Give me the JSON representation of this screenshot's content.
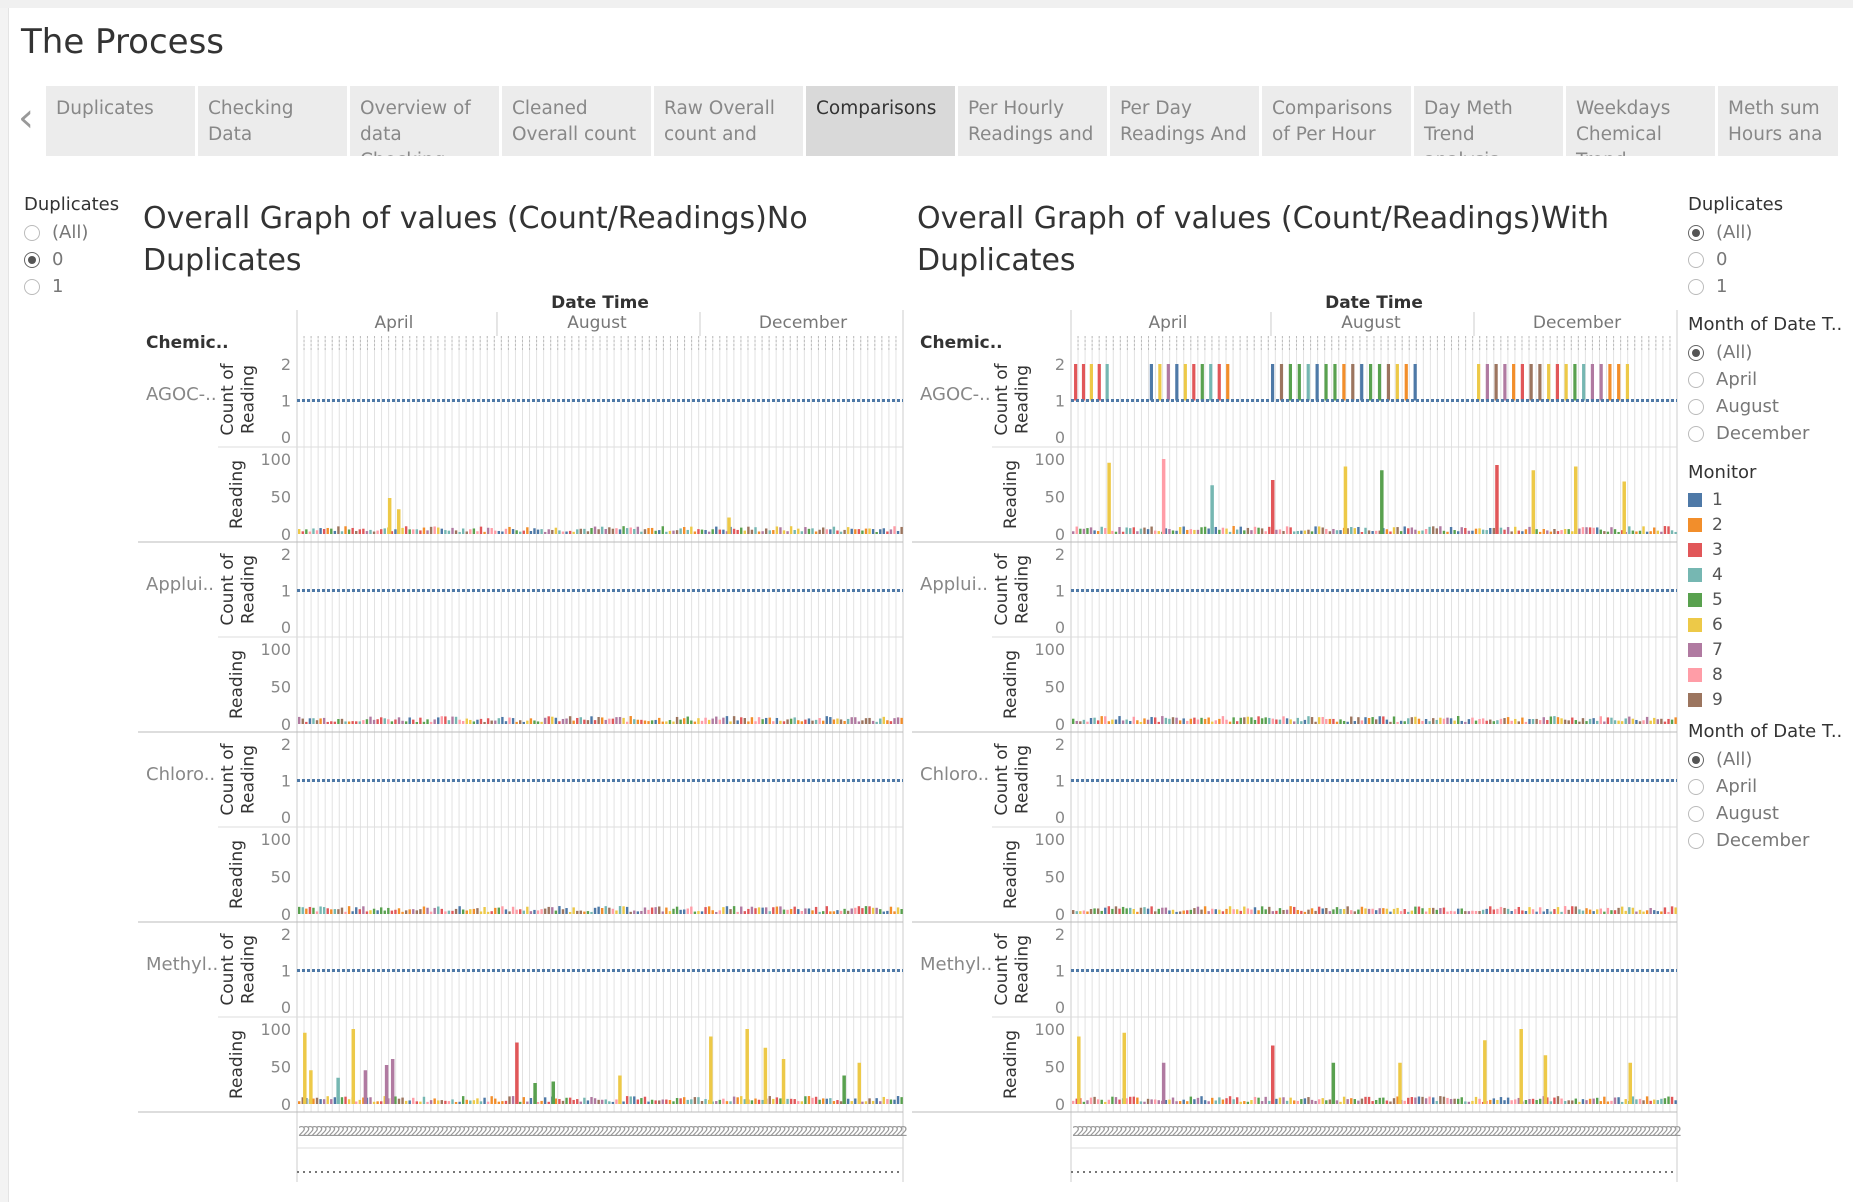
{
  "page": {
    "title": "The Process"
  },
  "tabs": [
    {
      "label": "Duplicates",
      "active": false
    },
    {
      "label": "Checking Data",
      "active": false
    },
    {
      "label": "Overview of data Checking",
      "active": false
    },
    {
      "label": "Cleaned Overall count",
      "active": false
    },
    {
      "label": "Raw Overall count and",
      "active": false
    },
    {
      "label": "Comparisons",
      "active": true
    },
    {
      "label": "Per Hourly Readings and",
      "active": false
    },
    {
      "label": "Per Day Readings And",
      "active": false
    },
    {
      "label": "Comparisons of Per Hour",
      "active": false
    },
    {
      "label": "Day Meth Trend analysis",
      "active": false
    },
    {
      "label": "Weekdays Chemical Trend",
      "active": false
    },
    {
      "label": "Meth sum Hours ana",
      "active": false
    }
  ],
  "nav": {
    "prev_icon": "‹",
    "next_icon": "›"
  },
  "left_filter": {
    "title": "Duplicates",
    "options": [
      {
        "label": "(All)",
        "selected": false
      },
      {
        "label": "0",
        "selected": true
      },
      {
        "label": "1",
        "selected": false
      }
    ]
  },
  "right_panel": {
    "duplicates": {
      "title": "Duplicates",
      "options": [
        {
          "label": "(All)",
          "selected": true
        },
        {
          "label": "0",
          "selected": false
        },
        {
          "label": "1",
          "selected": false
        }
      ]
    },
    "month1": {
      "title": "Month of Date T..",
      "options": [
        {
          "label": "(All)",
          "selected": true
        },
        {
          "label": "April",
          "selected": false
        },
        {
          "label": "August",
          "selected": false
        },
        {
          "label": "December",
          "selected": false
        }
      ]
    },
    "monitor": {
      "title": "Monitor",
      "items": [
        {
          "label": "1",
          "color": "#4e79a7"
        },
        {
          "label": "2",
          "color": "#f28e2b"
        },
        {
          "label": "3",
          "color": "#e15759"
        },
        {
          "label": "4",
          "color": "#76b7b2"
        },
        {
          "label": "5",
          "color": "#59a14f"
        },
        {
          "label": "6",
          "color": "#edc948"
        },
        {
          "label": "7",
          "color": "#b07aa1"
        },
        {
          "label": "8",
          "color": "#ff9da7"
        },
        {
          "label": "9",
          "color": "#9c755f"
        }
      ]
    },
    "month2": {
      "title": "Month of Date T..",
      "options": [
        {
          "label": "(All)",
          "selected": true
        },
        {
          "label": "April",
          "selected": false
        },
        {
          "label": "August",
          "selected": false
        },
        {
          "label": "December",
          "selected": false
        }
      ]
    }
  },
  "charts": {
    "row_header": "Chemic..",
    "x_title": "Date Time",
    "months": [
      "April",
      "August",
      "December"
    ],
    "chemicals": [
      "AGOC-..",
      "Applui..",
      "Chloro..",
      "Methyl.."
    ],
    "count_label": "Count of Reading",
    "reading_label": "Reading",
    "count_ticks": [
      "0",
      "1",
      "2"
    ],
    "reading_ticks": [
      "0",
      "50",
      "100"
    ],
    "left_title": "Overall Graph of values (Count/Readings)No Duplicates",
    "right_title": "Overall Graph of values (Count/Readings)With Duplicates"
  },
  "chart_data": [
    {
      "type": "bar",
      "title": "Overall Graph of values (Count/Readings)No Duplicates",
      "xlabel": "Date Time",
      "x_months": [
        "April",
        "August",
        "December"
      ],
      "rows": [
        "AGOC-..",
        "Applui..",
        "Chloro..",
        "Methyl.."
      ],
      "count_of_reading": {
        "ylim": [
          0,
          2
        ],
        "value": 1
      },
      "reading": {
        "ylim": [
          0,
          100
        ],
        "AGOC-..": [
          {
            "x": 0.15,
            "monitor": "6",
            "value": 48
          },
          {
            "x": 0.165,
            "monitor": "6",
            "value": 33
          },
          {
            "x": 0.71,
            "monitor": "6",
            "value": 22
          }
        ],
        "Methyl..": [
          {
            "x": 0.01,
            "monitor": "6",
            "value": 95
          },
          {
            "x": 0.02,
            "monitor": "6",
            "value": 45
          },
          {
            "x": 0.065,
            "monitor": "4",
            "value": 35
          },
          {
            "x": 0.09,
            "monitor": "6",
            "value": 100
          },
          {
            "x": 0.11,
            "monitor": "7",
            "value": 45
          },
          {
            "x": 0.145,
            "monitor": "7",
            "value": 52
          },
          {
            "x": 0.155,
            "monitor": "7",
            "value": 60
          },
          {
            "x": 0.36,
            "monitor": "3",
            "value": 82
          },
          {
            "x": 0.39,
            "monitor": "5",
            "value": 28
          },
          {
            "x": 0.42,
            "monitor": "5",
            "value": 30
          },
          {
            "x": 0.53,
            "monitor": "6",
            "value": 38
          },
          {
            "x": 0.68,
            "monitor": "6",
            "value": 90
          },
          {
            "x": 0.74,
            "monitor": "6",
            "value": 100
          },
          {
            "x": 0.77,
            "monitor": "6",
            "value": 75
          },
          {
            "x": 0.8,
            "monitor": "6",
            "value": 60
          },
          {
            "x": 0.9,
            "monitor": "5",
            "value": 38
          },
          {
            "x": 0.925,
            "monitor": "6",
            "value": 55
          }
        ]
      }
    },
    {
      "type": "bar",
      "title": "Overall Graph of values (Count/Readings)With Duplicates",
      "xlabel": "Date Time",
      "x_months": [
        "April",
        "August",
        "December"
      ],
      "rows": [
        "AGOC-..",
        "Applui..",
        "Chloro..",
        "Methyl.."
      ],
      "count_of_reading": {
        "ylim": [
          0,
          2
        ],
        "value": 1,
        "duplicate_value": 2
      },
      "reading": {
        "ylim": [
          0,
          100
        ],
        "AGOC-..": [
          {
            "x": 0.06,
            "monitor": "6",
            "value": 95
          },
          {
            "x": 0.15,
            "monitor": "8",
            "value": 100
          },
          {
            "x": 0.23,
            "monitor": "4",
            "value": 65
          },
          {
            "x": 0.33,
            "monitor": "3",
            "value": 72
          },
          {
            "x": 0.45,
            "monitor": "6",
            "value": 90
          },
          {
            "x": 0.51,
            "monitor": "5",
            "value": 85
          },
          {
            "x": 0.7,
            "monitor": "3",
            "value": 92
          },
          {
            "x": 0.76,
            "monitor": "6",
            "value": 85
          },
          {
            "x": 0.83,
            "monitor": "6",
            "value": 90
          },
          {
            "x": 0.91,
            "monitor": "6",
            "value": 70
          }
        ],
        "Methyl..": [
          {
            "x": 0.01,
            "monitor": "6",
            "value": 90
          },
          {
            "x": 0.085,
            "monitor": "6",
            "value": 95
          },
          {
            "x": 0.15,
            "monitor": "7",
            "value": 55
          },
          {
            "x": 0.33,
            "monitor": "3",
            "value": 78
          },
          {
            "x": 0.43,
            "monitor": "5",
            "value": 55
          },
          {
            "x": 0.54,
            "monitor": "6",
            "value": 55
          },
          {
            "x": 0.68,
            "monitor": "6",
            "value": 85
          },
          {
            "x": 0.74,
            "monitor": "6",
            "value": 100
          },
          {
            "x": 0.78,
            "monitor": "6",
            "value": 65
          },
          {
            "x": 0.92,
            "monitor": "6",
            "value": 55
          }
        ]
      }
    }
  ]
}
